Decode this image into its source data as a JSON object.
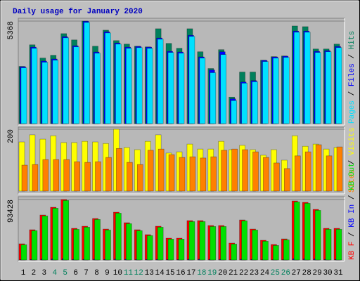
{
  "chart_data": [
    {
      "type": "bar",
      "title": "Daily usage for January 2020",
      "ylim": [
        0,
        5368
      ],
      "yticks": [
        5368
      ],
      "legend_separator": " / ",
      "legend_reversed": true,
      "series": [
        {
          "name": "Hits",
          "color": "#00805c",
          "values": [
            2995,
            4126,
            3433,
            3579,
            4711,
            4382,
            5368,
            4053,
            4893,
            4346,
            4163,
            4053,
            4017,
            4967,
            4200,
            3944,
            4967,
            3761,
            2885,
            3871,
            1388,
            2702,
            2702,
            3323,
            3506,
            3542,
            5112,
            5076,
            3907,
            3907,
            4163
          ]
        },
        {
          "name": "Files",
          "color": "#0000ff",
          "values": [
            2981,
            4004,
            3274,
            3383,
            4552,
            4077,
            5355,
            3748,
            4807,
            4223,
            4004,
            4040,
            4004,
            4479,
            3785,
            3748,
            4625,
            3493,
            2810,
            3760,
            1300,
            2178,
            2251,
            3310,
            3493,
            3529,
            4844,
            4844,
            3785,
            3821,
            4040
          ]
        },
        {
          "name": "Pages",
          "color": "#00e0ff",
          "values": [
            2921,
            3944,
            3214,
            3323,
            4492,
            4017,
            5295,
            3688,
            4747,
            4163,
            3944,
            3980,
            3944,
            4419,
            3725,
            3688,
            4565,
            3433,
            2666,
            3615,
            1205,
            2118,
            2191,
            3250,
            3433,
            3469,
            4784,
            4784,
            3725,
            3761,
            3980
          ]
        }
      ]
    },
    {
      "type": "bar",
      "ylim": [
        0,
        200
      ],
      "yticks": [
        200
      ],
      "legend_separator": " / ",
      "legend_reversed": true,
      "series": [
        {
          "name": "Visits",
          "color": "#ffff00",
          "values": [
            159,
            182,
            168,
            179,
            157,
            157,
            161,
            159,
            154,
            200,
            141,
            134,
            161,
            182,
            123,
            127,
            152,
            136,
            136,
            161,
            134,
            148,
            134,
            116,
            134,
            100,
            179,
            145,
            152,
            136,
            141
          ]
        },
        {
          "name": "Sites",
          "color": "#ff8000",
          "values": [
            84,
            86,
            102,
            102,
            102,
            95,
            93,
            95,
            109,
            138,
            93,
            86,
            132,
            136,
            118,
            109,
            111,
            107,
            111,
            132,
            136,
            134,
            127,
            109,
            91,
            73,
            114,
            127,
            150,
            114,
            143
          ]
        }
      ]
    },
    {
      "type": "bar",
      "ylim": [
        0,
        93428
      ],
      "yticks": [
        93428
      ],
      "legend_separator": " / ",
      "legend_reversed": false,
      "categories": [
        "1",
        "2",
        "3",
        "4",
        "5",
        "6",
        "7",
        "8",
        "9",
        "10",
        "11",
        "12",
        "13",
        "14",
        "15",
        "16",
        "17",
        "18",
        "19",
        "20",
        "21",
        "22",
        "23",
        "24",
        "25",
        "26",
        "27",
        "28",
        "29",
        "30",
        "31"
      ],
      "category_colors": [
        "#000000",
        "#000000",
        "#000000",
        "#00805c",
        "#00805c",
        "#000000",
        "#000000",
        "#000000",
        "#000000",
        "#000000",
        "#00805c",
        "#00805c",
        "#000000",
        "#000000",
        "#000000",
        "#000000",
        "#000000",
        "#00805c",
        "#00805c",
        "#000000",
        "#000000",
        "#000000",
        "#000000",
        "#000000",
        "#00805c",
        "#00805c",
        "#000000",
        "#000000",
        "#000000",
        "#000000",
        "#000000"
      ],
      "series": [
        {
          "name": "KB F",
          "color": "#ff0000",
          "values": [
            24978,
            46698,
            69504,
            81450,
            93428,
            48870,
            52128,
            64074,
            47784,
            73848,
            57558,
            46698,
            39096,
            52128,
            33666,
            33666,
            60816,
            60816,
            53214,
            53214,
            26064,
            61902,
            47784,
            30408,
            23892,
            32580,
            91224,
            89052,
            78192,
            48870,
            48870
          ]
        },
        {
          "name": "KB In",
          "color": "#0000ff",
          "values": [
            480,
            900,
            1360,
            1600,
            1840,
            950,
            1010,
            1250,
            930,
            1450,
            1120,
            900,
            750,
            1010,
            640,
            640,
            1190,
            1190,
            1030,
            1030,
            490,
            1210,
            930,
            580,
            450,
            620,
            1790,
            1750,
            1530,
            950,
            950
          ]
        },
        {
          "name": "KB Out",
          "color": "#00e000",
          "values": [
            23478,
            45198,
            68004,
            79950,
            91928,
            47370,
            50628,
            62574,
            46284,
            72348,
            56058,
            45198,
            37596,
            50628,
            32166,
            32166,
            59316,
            59316,
            51714,
            51714,
            24564,
            60402,
            46284,
            28908,
            22392,
            31080,
            89724,
            87552,
            76692,
            47370,
            47370
          ]
        }
      ]
    }
  ]
}
